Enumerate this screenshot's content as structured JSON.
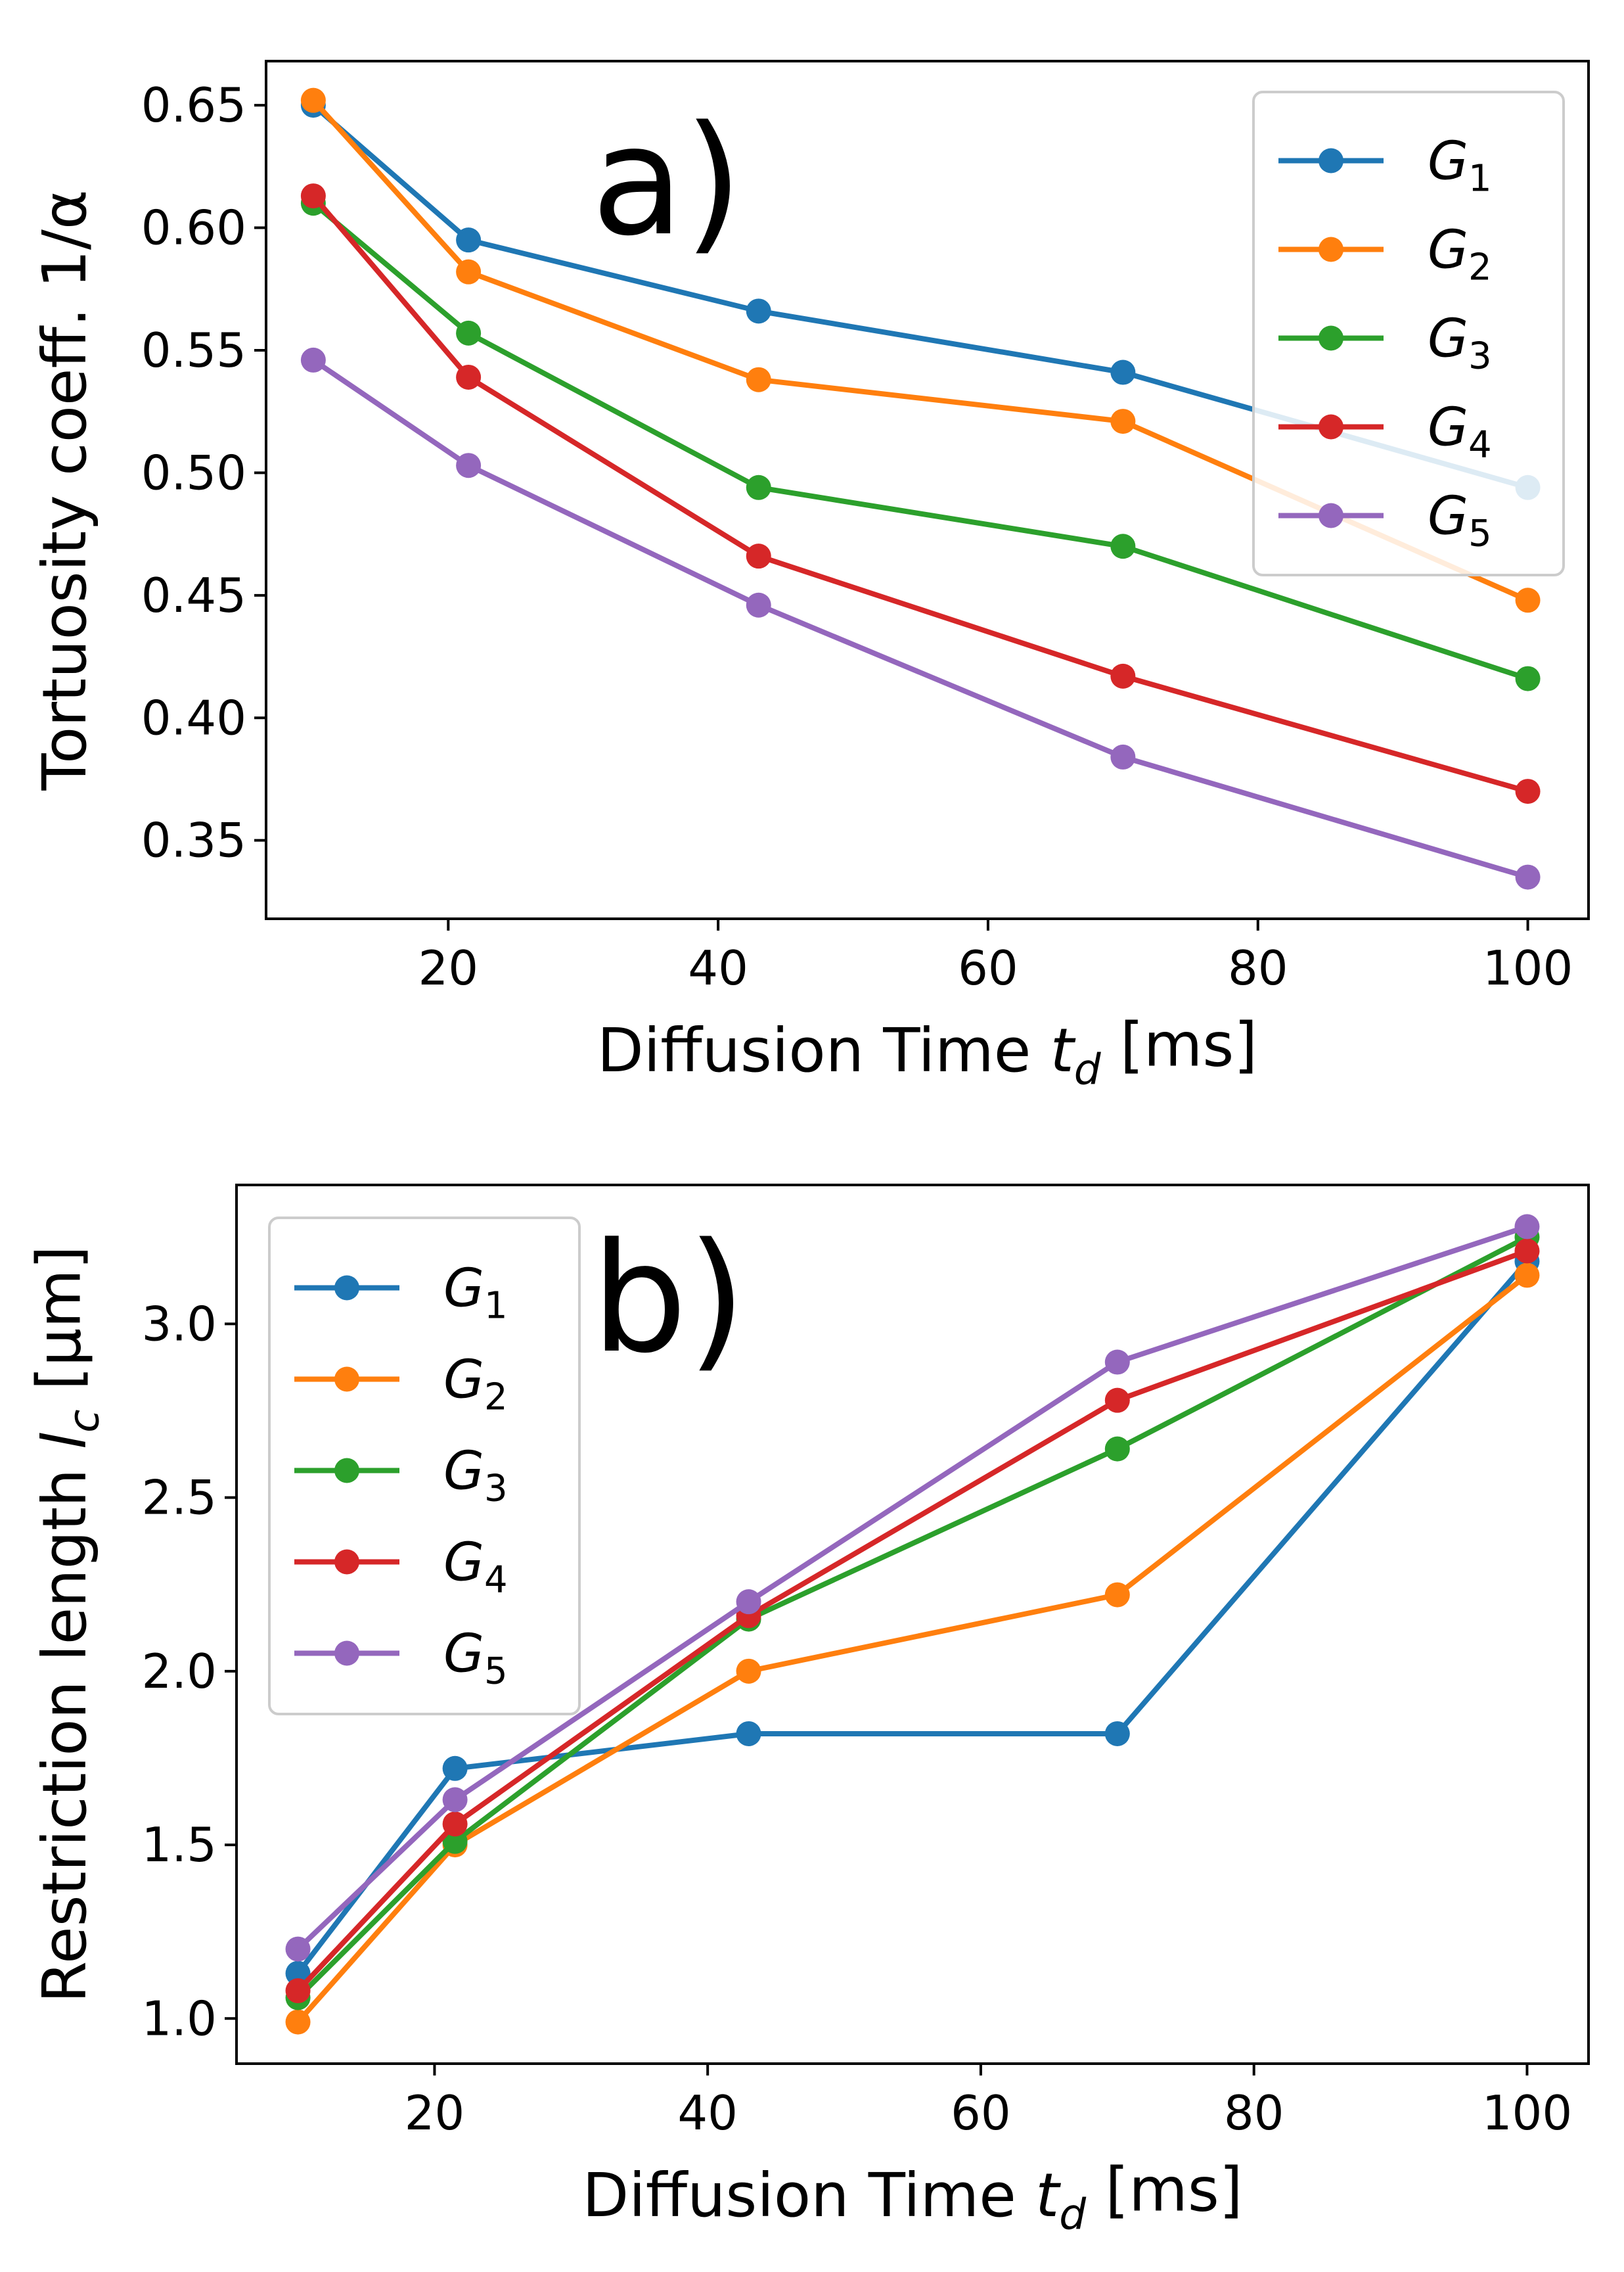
{
  "colors": {
    "G1": "#1f77b4",
    "G2": "#ff7f0e",
    "G3": "#2ca02c",
    "G4": "#d62728",
    "G5": "#9467bd"
  },
  "chart_data": [
    {
      "type": "line",
      "panel_label": "a)",
      "xlabel": "Diffusion Time t_d [ms]",
      "ylabel": "Tortuosity coeff. 1/α",
      "xlim": [
        6.5,
        104.5
      ],
      "ylim": [
        0.318,
        0.668
      ],
      "xticks": [
        20,
        40,
        60,
        80,
        100
      ],
      "xtick_labels": [
        "20",
        "40",
        "60",
        "80",
        "100"
      ],
      "yticks": [
        0.35,
        0.4,
        0.45,
        0.5,
        0.55,
        0.6,
        0.65
      ],
      "ytick_labels": [
        "0.35",
        "0.40",
        "0.45",
        "0.50",
        "0.55",
        "0.60",
        "0.65"
      ],
      "x": [
        10,
        21.5,
        43,
        70,
        100
      ],
      "legend_position": "upper right",
      "grid": false,
      "series": [
        {
          "name": "G",
          "sub": "1",
          "key": "G1",
          "values": [
            0.65,
            0.595,
            0.566,
            0.541,
            0.494
          ]
        },
        {
          "name": "G",
          "sub": "2",
          "key": "G2",
          "values": [
            0.652,
            0.582,
            0.538,
            0.521,
            0.448
          ]
        },
        {
          "name": "G",
          "sub": "3",
          "key": "G3",
          "values": [
            0.61,
            0.557,
            0.494,
            0.47,
            0.416
          ]
        },
        {
          "name": "G",
          "sub": "4",
          "key": "G4",
          "values": [
            0.613,
            0.539,
            0.466,
            0.417,
            0.37
          ]
        },
        {
          "name": "G",
          "sub": "5",
          "key": "G5",
          "values": [
            0.546,
            0.503,
            0.446,
            0.384,
            0.335
          ]
        }
      ]
    },
    {
      "type": "line",
      "panel_label": "b)",
      "xlabel": "Diffusion Time t_d [ms]",
      "ylabel": "Restriction length l_c [μm]",
      "xlim": [
        5.5,
        104.5
      ],
      "ylim": [
        0.87,
        3.4
      ],
      "xticks": [
        20,
        40,
        60,
        80,
        100
      ],
      "xtick_labels": [
        "20",
        "40",
        "60",
        "80",
        "100"
      ],
      "yticks": [
        1.0,
        1.5,
        2.0,
        2.5,
        3.0
      ],
      "ytick_labels": [
        "1.0",
        "1.5",
        "2.0",
        "2.5",
        "3.0"
      ],
      "x": [
        10,
        21.5,
        43,
        70,
        100
      ],
      "legend_position": "upper left",
      "grid": false,
      "series": [
        {
          "name": "G",
          "sub": "1",
          "key": "G1",
          "values": [
            1.13,
            1.72,
            1.82,
            1.82,
            3.18
          ]
        },
        {
          "name": "G",
          "sub": "2",
          "key": "G2",
          "values": [
            0.99,
            1.5,
            2.0,
            2.22,
            3.14
          ]
        },
        {
          "name": "G",
          "sub": "3",
          "key": "G3",
          "values": [
            1.06,
            1.51,
            2.15,
            2.64,
            3.25
          ]
        },
        {
          "name": "G",
          "sub": "4",
          "key": "G4",
          "values": [
            1.08,
            1.56,
            2.16,
            2.78,
            3.21
          ]
        },
        {
          "name": "G",
          "sub": "5",
          "key": "G5",
          "values": [
            1.2,
            1.63,
            2.2,
            2.89,
            3.28
          ]
        }
      ]
    }
  ]
}
